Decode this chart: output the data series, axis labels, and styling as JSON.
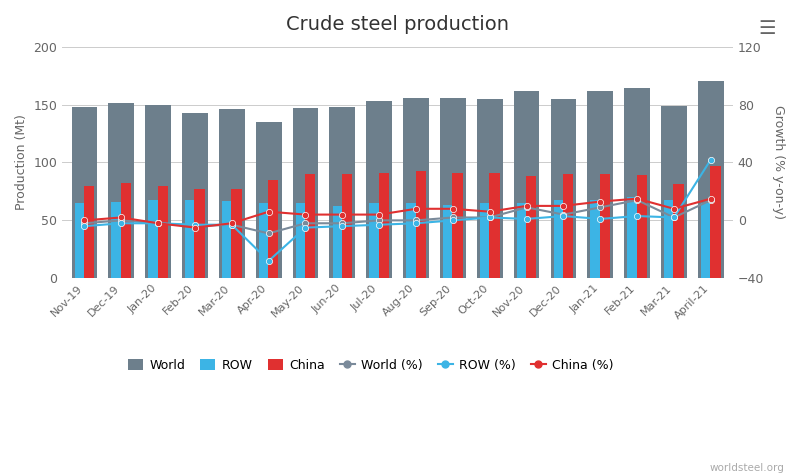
{
  "title": "Crude steel production",
  "ylabel_left": "Production (Mt)",
  "ylabel_right": "Growth (% y-on-y)",
  "categories": [
    "Nov-19",
    "Dec-19",
    "Jan-20",
    "Feb-20",
    "Mar-20",
    "Apr-20",
    "May-20",
    "Jun-20",
    "Jul-20",
    "Aug-20",
    "Sep-20",
    "Oct-20",
    "Nov-20",
    "Dec-20",
    "Jan-21",
    "Feb-21",
    "Mar-21",
    "April-21"
  ],
  "world": [
    148,
    151,
    150,
    143,
    146,
    135,
    147,
    148,
    153,
    156,
    156,
    155,
    162,
    155,
    162,
    164,
    149,
    170
  ],
  "row": [
    65,
    66,
    68,
    68,
    67,
    65,
    65,
    62,
    65,
    65,
    63,
    65,
    65,
    68,
    68,
    70,
    68,
    65
  ],
  "china": [
    80,
    82,
    80,
    77,
    77,
    85,
    90,
    90,
    91,
    93,
    91,
    91,
    88,
    90,
    90,
    89,
    81,
    97
  ],
  "world_pct": [
    -2,
    0,
    -2,
    -4,
    -3,
    -9,
    -2,
    -2,
    0,
    0,
    2,
    2,
    9,
    4,
    9,
    14,
    2,
    14
  ],
  "row_pct": [
    -4,
    -2,
    -2,
    -3,
    -3,
    -28,
    -5,
    -4,
    -3,
    -2,
    0,
    2,
    1,
    3,
    1,
    3,
    2,
    42
  ],
  "china_pct": [
    0,
    2,
    -2,
    -5,
    -2,
    6,
    4,
    4,
    4,
    8,
    8,
    6,
    10,
    10,
    13,
    15,
    8,
    15
  ],
  "ylim_left": [
    0,
    200
  ],
  "ylim_right": [
    -40,
    120
  ],
  "world_bar_color": "#6d7f8c",
  "row_bar_color": "#3cb4e5",
  "china_bar_color": "#e03030",
  "world_line_color": "#7a8a9a",
  "row_line_color": "#3cb4e5",
  "china_line_color": "#e03030",
  "background_color": "#ffffff",
  "grid_color": "#cccccc"
}
